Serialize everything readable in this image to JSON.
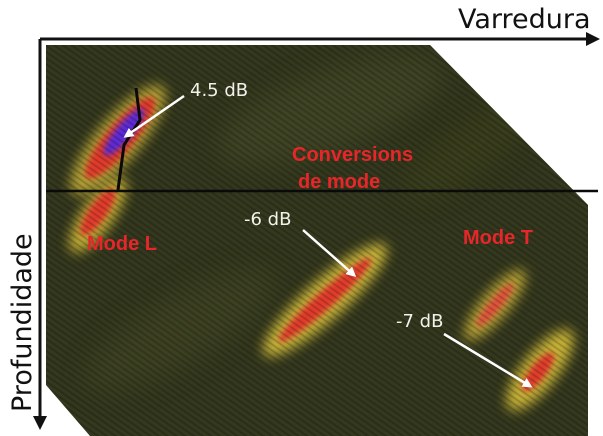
{
  "axes": {
    "x_title": "Varredura",
    "y_title": "Profundidade"
  },
  "modes": {
    "left": "Mode L",
    "right": "Mode T",
    "conversions_line1": "Conversions",
    "conversions_line2": "de mode"
  },
  "annotations": {
    "a1": "4.5 dB",
    "a2": "-6 dB",
    "a3": "-7 dB"
  },
  "colors": {
    "background_scan": "#34381e",
    "signal_yellow": "#e6cf3a",
    "signal_red": "#e03a2a",
    "signal_blue": "#5a2ad8",
    "label_red": "#e8262a",
    "arrow_white": "#ffffff"
  }
}
